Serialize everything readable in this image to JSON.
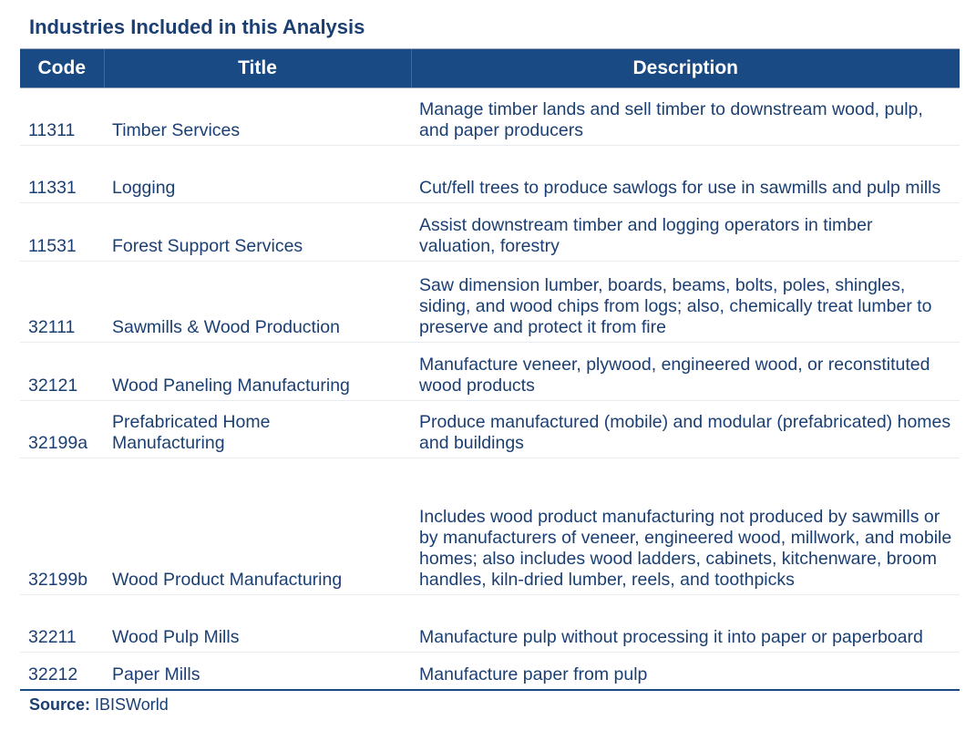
{
  "page_title": "Industries Included in this Analysis",
  "table": {
    "headers": {
      "code": "Code",
      "title": "Title",
      "description": "Description"
    },
    "rows": [
      {
        "code": "11311",
        "title": "Timber Services",
        "description": "Manage timber lands and sell timber to downstream wood, pulp, and paper producers"
      },
      {
        "code": "11331",
        "title": "Logging",
        "description": "Cut/fell trees to produce sawlogs for use in sawmills and pulp mills"
      },
      {
        "code": "11531",
        "title": "Forest Support Services",
        "description": "Assist downstream timber and logging operators in timber valuation, forestry"
      },
      {
        "code": "32111",
        "title": "Sawmills & Wood Production",
        "description": "Saw dimension lumber, boards, beams, bolts, poles, shingles, siding, and wood chips from logs; also, chemically treat lumber to preserve and protect it from fire"
      },
      {
        "code": "32121",
        "title": "Wood Paneling Manufacturing",
        "description": "Manufacture veneer, plywood, engineered wood, or reconstituted wood products"
      },
      {
        "code": "32199a",
        "title": "Prefabricated Home Manufacturing",
        "description": "Produce manufactured (mobile) and modular (prefabricated) homes and buildings"
      },
      {
        "code": "32199b",
        "title": "Wood Product Manufacturing",
        "description": "Includes wood product manufacturing not produced by sawmills or by manufacturers of veneer, engineered wood, millwork, and mobile homes; also includes wood ladders, cabinets, kitchenware, broom handles, kiln-dried lumber, reels, and toothpicks"
      },
      {
        "code": "32211",
        "title": "Wood Pulp Mills",
        "description": "Manufacture pulp without processing it into paper or paperboard"
      },
      {
        "code": "32212",
        "title": "Paper Mills",
        "description": "Manufacture paper from pulp"
      }
    ]
  },
  "source": {
    "label": "Source:",
    "value": "IBISWorld"
  },
  "colors": {
    "header_background": "#1a4a83",
    "text": "#1b3f72"
  }
}
